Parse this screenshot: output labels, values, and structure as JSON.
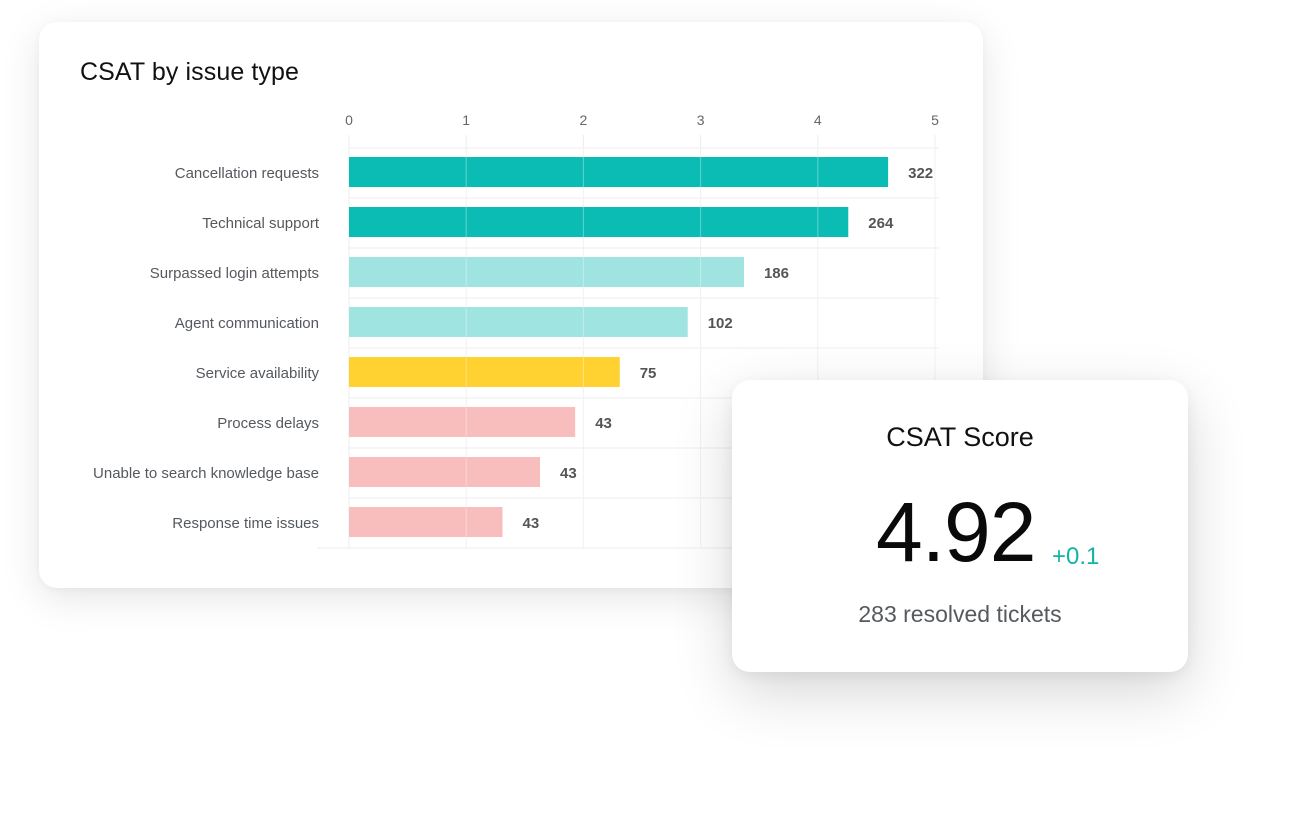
{
  "chart_card": {
    "title": "CSAT by issue type"
  },
  "chart_data": {
    "type": "bar",
    "orientation": "horizontal",
    "title": "CSAT by issue type",
    "xlim": [
      0,
      5
    ],
    "x_ticks": [
      "0",
      "1",
      "2",
      "3",
      "4",
      "5"
    ],
    "axis_position": "top",
    "grid": true,
    "categories": [
      "Cancellation requests",
      "Technical support",
      "Surpassed login attempts",
      "Agent communication",
      "Service availability",
      "Process delays",
      "Unable to search knowledge base",
      "Response time issues"
    ],
    "values": [
      4.6,
      4.26,
      3.37,
      2.89,
      2.31,
      1.93,
      1.63,
      1.31
    ],
    "data_labels": [
      "322",
      "264",
      "186",
      "102",
      "75",
      "43",
      "43",
      "43"
    ],
    "bar_colors": [
      "#0bbcb5",
      "#0bbcb5",
      "#a0e4e2",
      "#a0e4e2",
      "#ffd232",
      "#f8bebe",
      "#f8bebe",
      "#f8bebe"
    ]
  },
  "score_card": {
    "title": "CSAT Score",
    "value": "4.92",
    "delta": "+0.1",
    "subtitle": "283 resolved tickets",
    "delta_color": "#11b5a8"
  }
}
